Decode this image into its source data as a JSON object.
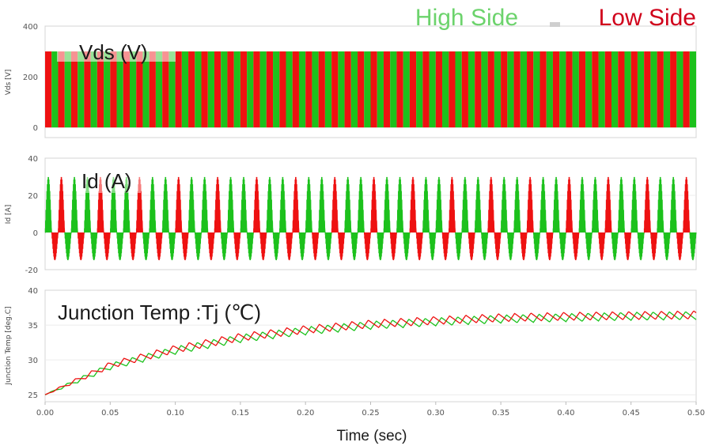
{
  "legend": {
    "high_side": {
      "label": "High Side",
      "color": "#6cd36c"
    },
    "low_side": {
      "label": "Low Side",
      "color": "#d0021b"
    }
  },
  "x_axis": {
    "title": "Time (sec)",
    "range": [
      0,
      0.5
    ],
    "ticks": [
      "0.00",
      "0.05",
      "0.10",
      "0.15",
      "0.20",
      "0.25",
      "0.30",
      "0.35",
      "0.40",
      "0.45",
      "0.50"
    ]
  },
  "chart_data": [
    {
      "type": "line",
      "annotation": "Vds (V)",
      "ylabel": "Vds [V]",
      "ylim": [
        -40,
        400
      ],
      "yticks": [
        "0",
        "200",
        "400"
      ],
      "switching_cycle_s": 0.01,
      "series": [
        {
          "name": "High Side",
          "color": "#1cc11c",
          "on_value": 300,
          "off_value": 0,
          "phase": "second half of each cycle"
        },
        {
          "name": "Low Side",
          "color": "#ee1111",
          "on_value": 300,
          "off_value": 0,
          "phase": "first half of each cycle"
        }
      ]
    },
    {
      "type": "line",
      "annotation": "Id (A)",
      "ylabel": "Id [A]",
      "ylim": [
        -20,
        40
      ],
      "yticks": [
        "-20",
        "0",
        "20",
        "40"
      ],
      "switching_cycle_s": 0.01,
      "series": [
        {
          "name": "High Side",
          "color": "#1cc11c",
          "positive_peak": 30,
          "negative_peak": -15
        },
        {
          "name": "Low Side",
          "color": "#ee1111",
          "positive_peak": 30,
          "negative_peak": -15
        }
      ]
    },
    {
      "type": "line",
      "annotation": "Junction Temp :Tj (℃)",
      "ylabel": "Junction Temp [deg.C]",
      "ylim": [
        24,
        40
      ],
      "yticks": [
        "25",
        "30",
        "35",
        "40"
      ],
      "series": [
        {
          "name": "High Side",
          "color": "#1cc11c",
          "x": [
            0,
            0.05,
            0.1,
            0.15,
            0.2,
            0.25,
            0.3,
            0.35,
            0.4,
            0.45,
            0.5
          ],
          "y": [
            25,
            29.0,
            31.3,
            33.0,
            34.1,
            34.9,
            35.4,
            35.8,
            36.0,
            36.2,
            36.3
          ]
        },
        {
          "name": "Low Side",
          "color": "#ee1111",
          "x": [
            0,
            0.05,
            0.1,
            0.15,
            0.2,
            0.25,
            0.3,
            0.35,
            0.4,
            0.45,
            0.5
          ],
          "y": [
            25,
            29.2,
            31.5,
            33.2,
            34.3,
            35.1,
            35.6,
            36.0,
            36.2,
            36.3,
            36.4
          ]
        }
      ]
    }
  ]
}
